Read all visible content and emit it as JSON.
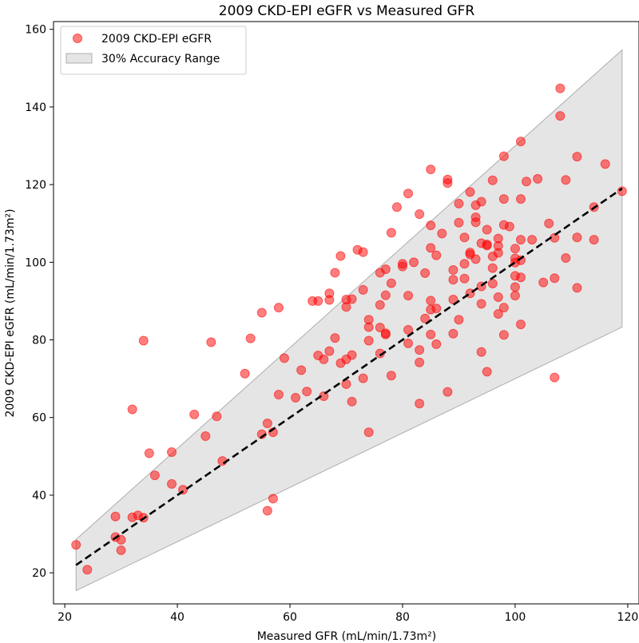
{
  "chart_data": {
    "type": "scatter",
    "title": "2009 CKD-EPI eGFR vs Measured GFR",
    "xlabel": "Measured GFR (mL/min/1.73m²)",
    "ylabel": "2009 CKD-EPI eGFR (mL/min/1.73m²)",
    "xlim": [
      18,
      122
    ],
    "ylim": [
      12,
      162
    ],
    "xticks": [
      20,
      40,
      60,
      80,
      100,
      120
    ],
    "yticks": [
      20,
      40,
      60,
      80,
      100,
      120,
      140,
      160
    ],
    "legend": {
      "position": "top-left",
      "entries": [
        "2009 CKD-EPI eGFR",
        "30% Accuracy Range"
      ]
    },
    "colors": {
      "points": "#ff0000",
      "band_fill": "#d3d3d3",
      "band_edge": "#808080",
      "identity_line": "#000000"
    },
    "identity_line": {
      "x": [
        22,
        119
      ],
      "y": [
        22,
        119
      ],
      "style": "dashed"
    },
    "accuracy_band": {
      "x": [
        22,
        119
      ],
      "lower_factor": 0.7,
      "upper_factor": 1.3
    },
    "series": [
      {
        "name": "2009 CKD-EPI eGFR",
        "points": [
          [
            22,
            27.2
          ],
          [
            24,
            20.8
          ],
          [
            29,
            34.5
          ],
          [
            29,
            29.2
          ],
          [
            30,
            28.5
          ],
          [
            30,
            25.8
          ],
          [
            32,
            62.1
          ],
          [
            32,
            34.3
          ],
          [
            33,
            34.8
          ],
          [
            34,
            34.2
          ],
          [
            34,
            79.8
          ],
          [
            35,
            50.8
          ],
          [
            36,
            45.1
          ],
          [
            39,
            51.1
          ],
          [
            39,
            42.9
          ],
          [
            41,
            41.4
          ],
          [
            43,
            60.8
          ],
          [
            45,
            55.2
          ],
          [
            46,
            79.4
          ],
          [
            47,
            60.3
          ],
          [
            48,
            48.8
          ],
          [
            52,
            71.3
          ],
          [
            53,
            80.4
          ],
          [
            55,
            87
          ],
          [
            55,
            55.7
          ],
          [
            56,
            58.5
          ],
          [
            56,
            36
          ],
          [
            57,
            56.2
          ],
          [
            57,
            39.1
          ],
          [
            58,
            88.3
          ],
          [
            58,
            65.9
          ],
          [
            59,
            75.3
          ],
          [
            61,
            65.1
          ],
          [
            62,
            72.2
          ],
          [
            63,
            66.7
          ],
          [
            64,
            90
          ],
          [
            65,
            90
          ],
          [
            65,
            76
          ],
          [
            66,
            75
          ],
          [
            66,
            65.5
          ],
          [
            67,
            92
          ],
          [
            67,
            90.3
          ],
          [
            67,
            77.1
          ],
          [
            68,
            97.3
          ],
          [
            68,
            80.5
          ],
          [
            69,
            101.6
          ],
          [
            69,
            74
          ],
          [
            70,
            90.4
          ],
          [
            70,
            88.5
          ],
          [
            70,
            75
          ],
          [
            70,
            68.6
          ],
          [
            71,
            90.5
          ],
          [
            71,
            76.1
          ],
          [
            71,
            64.1
          ],
          [
            72,
            103.2
          ],
          [
            73,
            102.6
          ],
          [
            73,
            92.9
          ],
          [
            73,
            70.1
          ],
          [
            74,
            85.2
          ],
          [
            74,
            83.3
          ],
          [
            74,
            79.8
          ],
          [
            74,
            56.2
          ],
          [
            76,
            97.3
          ],
          [
            76,
            89
          ],
          [
            76,
            83.2
          ],
          [
            76,
            76.5
          ],
          [
            77,
            98.2
          ],
          [
            77,
            91.5
          ],
          [
            77,
            81.7
          ],
          [
            77,
            81.4
          ],
          [
            78,
            107.6
          ],
          [
            78,
            94.6
          ],
          [
            78,
            70.8
          ],
          [
            79,
            114.2
          ],
          [
            80,
            99.6
          ],
          [
            80,
            98.9
          ],
          [
            81,
            117.7
          ],
          [
            81,
            91.4
          ],
          [
            81,
            82.6
          ],
          [
            81,
            79.1
          ],
          [
            82,
            100
          ],
          [
            83,
            112.4
          ],
          [
            83,
            77.4
          ],
          [
            83,
            74.2
          ],
          [
            83,
            63.6
          ],
          [
            84,
            97.2
          ],
          [
            84,
            85.5
          ],
          [
            85,
            123.9
          ],
          [
            85,
            109.5
          ],
          [
            85,
            103.7
          ],
          [
            85,
            90.1
          ],
          [
            85,
            87.8
          ],
          [
            85,
            81.4
          ],
          [
            86,
            101.8
          ],
          [
            86,
            88.1
          ],
          [
            86,
            78.9
          ],
          [
            87,
            107.4
          ],
          [
            88,
            121.3
          ],
          [
            88,
            120.4
          ],
          [
            88,
            66.6
          ],
          [
            89,
            98
          ],
          [
            89,
            95.5
          ],
          [
            89,
            90.4
          ],
          [
            89,
            81.6
          ],
          [
            90,
            115.1
          ],
          [
            90,
            110.2
          ],
          [
            90,
            85.2
          ],
          [
            91,
            106.4
          ],
          [
            91,
            99.6
          ],
          [
            91,
            95.8
          ],
          [
            92,
            118.1
          ],
          [
            92,
            102.5
          ],
          [
            92,
            102
          ],
          [
            92,
            92
          ],
          [
            93,
            114.7
          ],
          [
            93,
            111.6
          ],
          [
            93,
            110.3
          ],
          [
            93,
            100.8
          ],
          [
            94,
            115.6
          ],
          [
            94,
            104.9
          ],
          [
            94,
            93.8
          ],
          [
            94,
            89.3
          ],
          [
            94,
            76.9
          ],
          [
            95,
            108.4
          ],
          [
            95,
            104.6
          ],
          [
            95,
            104.3
          ],
          [
            95,
            71.8
          ],
          [
            96,
            121.1
          ],
          [
            96,
            98.5
          ],
          [
            96,
            94.5
          ],
          [
            96,
            101.5
          ],
          [
            97,
            106.1
          ],
          [
            97,
            104.2
          ],
          [
            97,
            102.4
          ],
          [
            97,
            91
          ],
          [
            97,
            86.7
          ],
          [
            98,
            127.3
          ],
          [
            98,
            116.3
          ],
          [
            98,
            109.6
          ],
          [
            98,
            88.3
          ],
          [
            98,
            81.3
          ],
          [
            99,
            109.2
          ],
          [
            100,
            103.5
          ],
          [
            100,
            101
          ],
          [
            100,
            99.9
          ],
          [
            100,
            96.5
          ],
          [
            100,
            93.6
          ],
          [
            100,
            91.4
          ],
          [
            101,
            131.1
          ],
          [
            101,
            116.3
          ],
          [
            101,
            105.8
          ],
          [
            101,
            100.5
          ],
          [
            101,
            96.1
          ],
          [
            101,
            84
          ],
          [
            102,
            120.8
          ],
          [
            103,
            105.8
          ],
          [
            104,
            121.5
          ],
          [
            105,
            94.8
          ],
          [
            106,
            110
          ],
          [
            107,
            106.3
          ],
          [
            107,
            95.9
          ],
          [
            107,
            70.3
          ],
          [
            108,
            144.8
          ],
          [
            108,
            137.7
          ],
          [
            109,
            121.2
          ],
          [
            109,
            101.1
          ],
          [
            111,
            127.2
          ],
          [
            111,
            106.4
          ],
          [
            111,
            93.4
          ],
          [
            114,
            114.2
          ],
          [
            114,
            105.8
          ],
          [
            116,
            125.3
          ],
          [
            119,
            118.3
          ]
        ]
      }
    ]
  }
}
